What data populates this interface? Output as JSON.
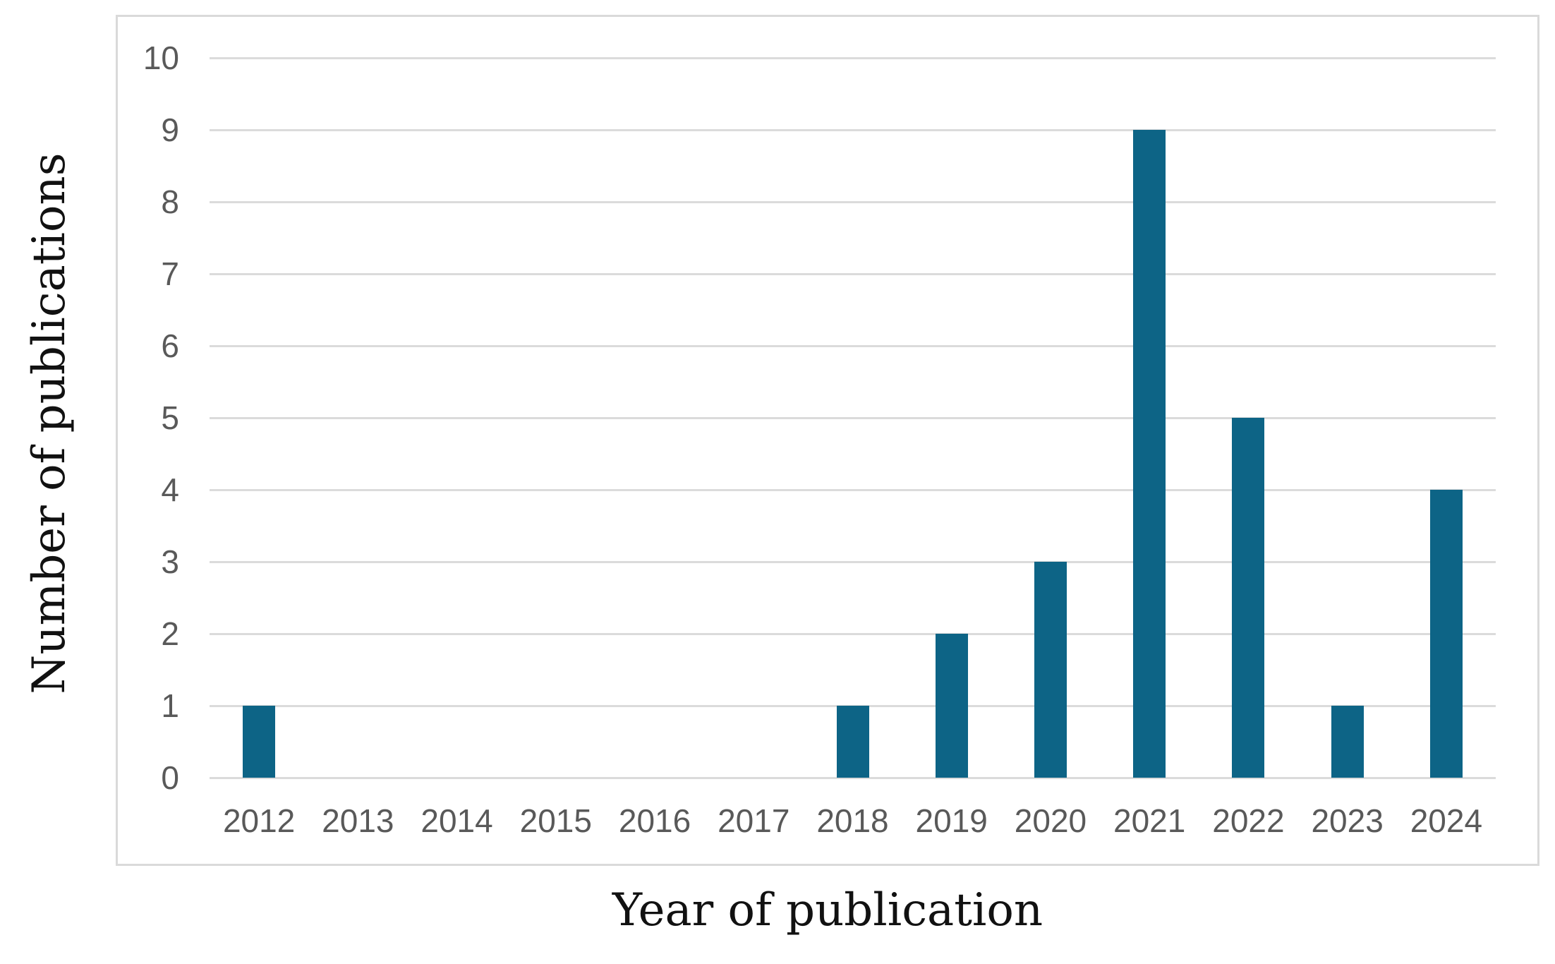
{
  "chart_data": {
    "type": "bar",
    "title": "",
    "categories": [
      "2012",
      "2013",
      "2014",
      "2015",
      "2016",
      "2017",
      "2018",
      "2019",
      "2020",
      "2021",
      "2022",
      "2023",
      "2024"
    ],
    "values": [
      1,
      0,
      0,
      0,
      0,
      0,
      1,
      2,
      3,
      9,
      5,
      1,
      4
    ],
    "xlabel": "Year of publication",
    "ylabel": "Number of publications",
    "ylim": [
      0,
      10
    ],
    "ytick_step": 1,
    "yticks": [
      "0",
      "1",
      "2",
      "3",
      "4",
      "5",
      "6",
      "7",
      "8",
      "9",
      "10"
    ],
    "grid": true,
    "legend": "none",
    "colors": {
      "bar": "#0d6486",
      "gridline": "#dbdbdb",
      "frame_border": "#dadada",
      "tick_label": "#595959",
      "axis_title": "#111111",
      "background": "#ffffff"
    }
  }
}
